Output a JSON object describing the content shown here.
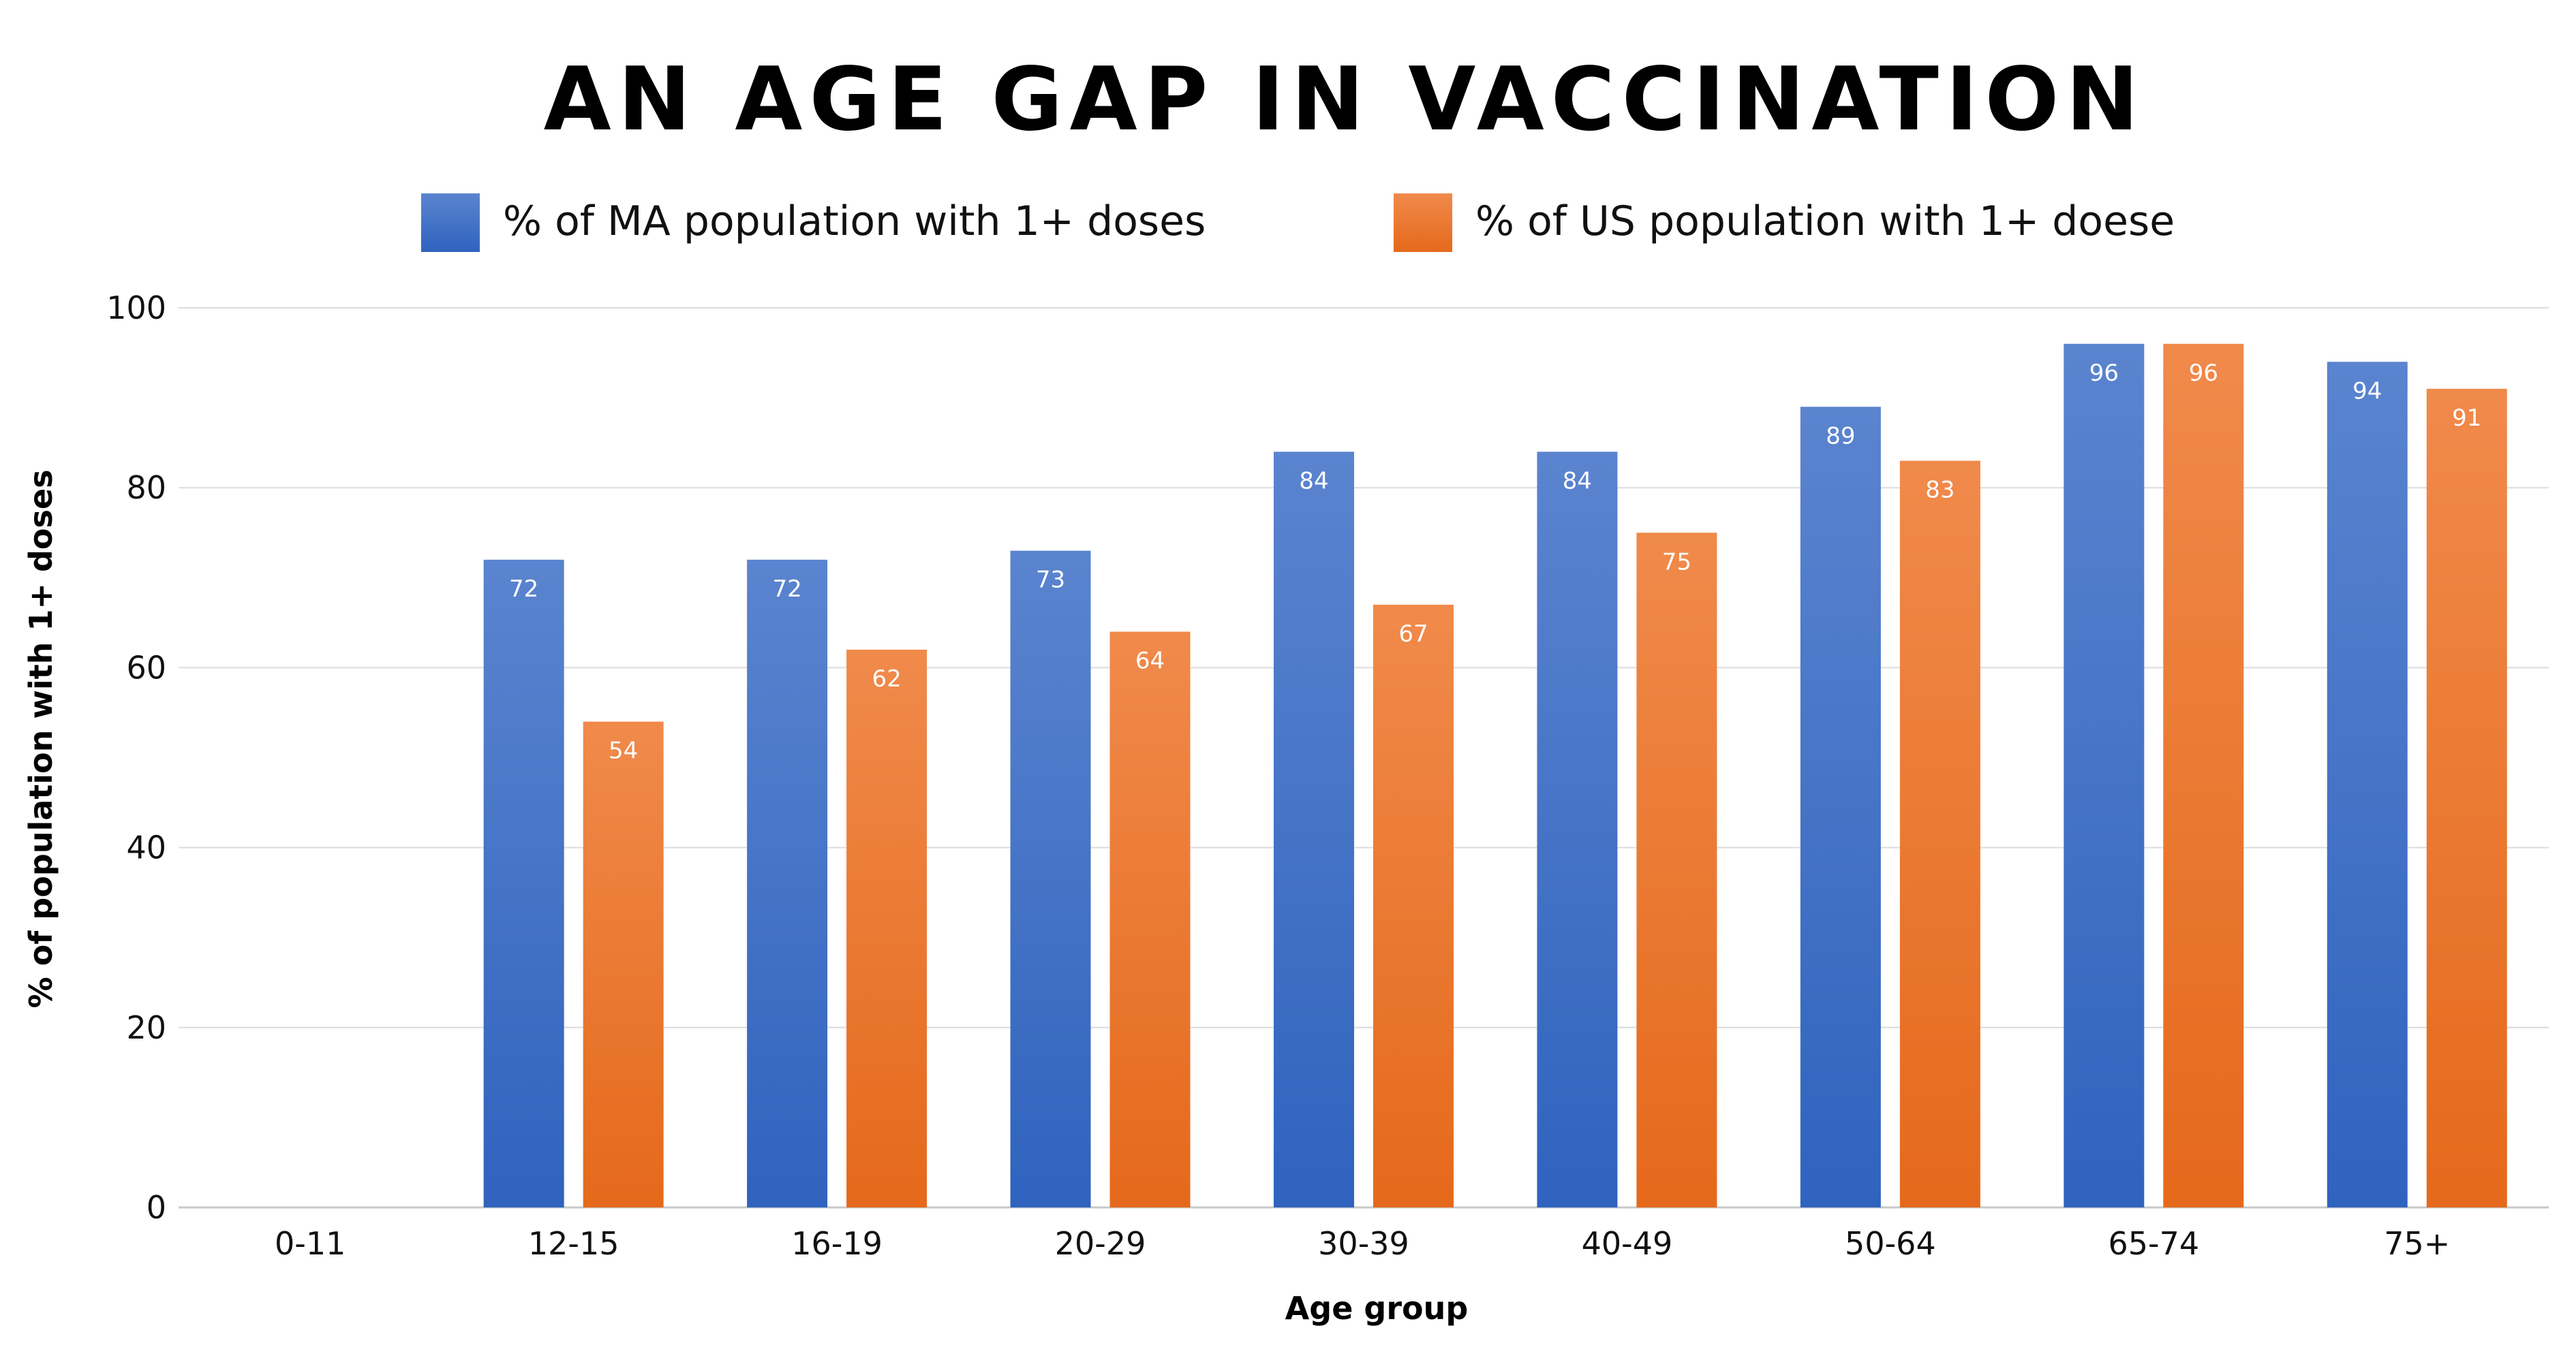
{
  "chart_data": {
    "type": "bar",
    "title": "AN AGE GAP IN VACCINATION",
    "xlabel": "Age group",
    "ylabel": "% of population with 1+ doses",
    "categories": [
      "0-11",
      "12-15",
      "16-19",
      "20-29",
      "30-39",
      "40-49",
      "50-64",
      "65-74",
      "75+"
    ],
    "series": [
      {
        "name": "% of MA population with 1+ doses",
        "values": [
          0,
          72,
          72,
          73,
          84,
          84,
          89,
          96,
          94
        ],
        "color_top": "#5b84cf",
        "color_bottom": "#2f63be"
      },
      {
        "name": "% of US population with 1+ doese",
        "values": [
          0,
          54,
          62,
          64,
          67,
          75,
          83,
          96,
          91
        ],
        "color_top": "#f08a4b",
        "color_bottom": "#e5691b"
      }
    ],
    "ylim": [
      0,
      100
    ],
    "yticks": [
      0,
      20,
      40,
      60,
      80,
      100
    ],
    "grid": true,
    "legend_position": "top-center",
    "data_labels": true
  }
}
